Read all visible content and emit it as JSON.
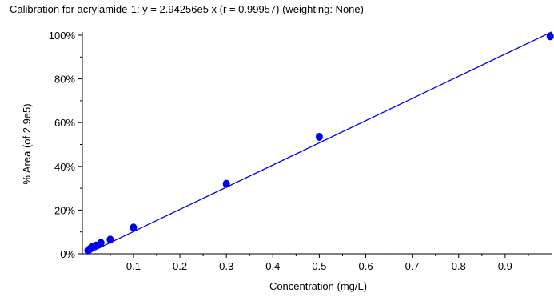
{
  "chart_data": {
    "type": "scatter",
    "title": "Calibration for acrylamide-1: y = 2.94256e5 x (r = 0.99957)  (weighting: None)",
    "xlabel": "Concentration (mg/L)",
    "ylabel": "% Area (of 2.9e5)",
    "xlim": [
      -0.01,
      1.0
    ],
    "ylim": [
      0,
      100
    ],
    "x_ticks": [
      0.1,
      0.2,
      0.3,
      0.4,
      0.5,
      0.6,
      0.7,
      0.8,
      0.9
    ],
    "y_ticks": [
      0,
      20,
      40,
      60,
      80,
      100
    ],
    "y_tick_labels": [
      "0%",
      "20%",
      "40%",
      "60%",
      "80%",
      "100%"
    ],
    "grid": false,
    "colors": {
      "points": "#0000ee",
      "fit_line": "#0000ee"
    },
    "series": [
      {
        "kind": "points",
        "x": [
          0.002,
          0.005,
          0.01,
          0.02,
          0.03,
          0.05,
          0.1,
          0.3,
          0.5,
          0.997
        ],
        "y": [
          1.5,
          2.0,
          3.0,
          3.8,
          5.0,
          6.5,
          12.0,
          32.0,
          53.5,
          99.5
        ]
      },
      {
        "kind": "fit_line",
        "x": [
          0.0,
          1.0
        ],
        "y": [
          0.0,
          101.5
        ]
      }
    ]
  }
}
